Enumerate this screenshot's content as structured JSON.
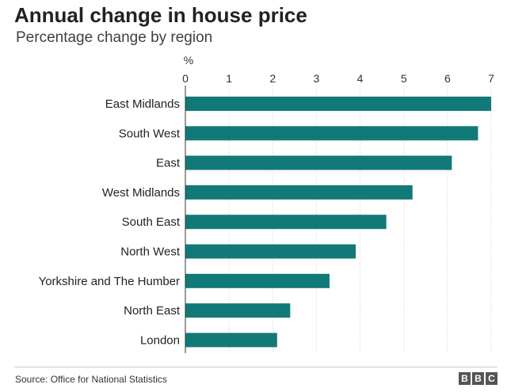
{
  "chart_data": {
    "type": "bar",
    "orientation": "horizontal",
    "title": "Annual change in house price",
    "subtitle": "Percentage change by region",
    "axis_unit": "%",
    "xlim": [
      0,
      7
    ],
    "ticks": [
      0,
      1,
      2,
      3,
      4,
      5,
      6,
      7
    ],
    "categories": [
      "East Midlands",
      "South West",
      "East",
      "West Midlands",
      "South East",
      "North West",
      "Yorkshire and The Humber",
      "North East",
      "London"
    ],
    "values": [
      7.0,
      6.7,
      6.1,
      5.2,
      4.6,
      3.9,
      3.3,
      2.4,
      2.1
    ],
    "bar_color": "#117a78",
    "grid": true,
    "legend": null
  },
  "footer": {
    "source": "Source: Office for National Statistics",
    "logo_letters": [
      "B",
      "B",
      "C"
    ]
  }
}
